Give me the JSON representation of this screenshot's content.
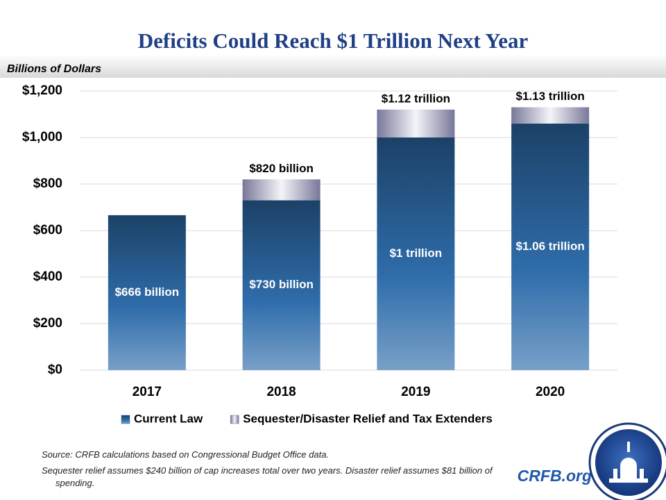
{
  "chart_data": {
    "type": "stacked_bar",
    "title": "Deficits Could Reach $1 Trillion Next Year",
    "ylabel": "Billions of Dollars",
    "categories": [
      "2017",
      "2018",
      "2019",
      "2020"
    ],
    "series": [
      {
        "name": "Current Law",
        "color": "#2f6dab",
        "values": [
          666,
          730,
          1000,
          1060
        ],
        "value_labels": [
          "$666 billion",
          "$730 billion",
          "$1 trillion",
          "$1.06 trillion"
        ]
      },
      {
        "name": "Sequester/Disaster Relief and Tax Extenders",
        "color": "#77779a",
        "values": [
          null,
          90,
          120,
          70
        ]
      }
    ],
    "totals": {
      "values": [
        null,
        820,
        1120,
        1130
      ],
      "value_labels": [
        null,
        "$820 billion",
        "$1.12 trillion",
        "$1.13 trillion"
      ]
    },
    "ylim": [
      0,
      1200
    ],
    "yticks": [
      {
        "value": 0,
        "label": "$0"
      },
      {
        "value": 200,
        "label": "$200"
      },
      {
        "value": 400,
        "label": "$400"
      },
      {
        "value": 600,
        "label": "$600"
      },
      {
        "value": 800,
        "label": "$800"
      },
      {
        "value": 1000,
        "label": "$1,000"
      },
      {
        "value": 1200,
        "label": "$1,200"
      }
    ],
    "grid": true,
    "legend": "bottom",
    "notes": [
      "Source: CRFB calculations based on Congressional Budget Office data.",
      "Sequester relief assumes $240 billion of cap increases total over two years. Disaster relief assumes $81 billion of spending."
    ],
    "brand": "CRFB.org"
  }
}
